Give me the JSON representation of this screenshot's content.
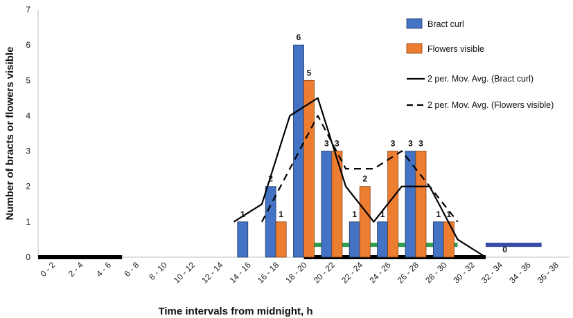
{
  "chart_data": {
    "type": "bar",
    "xlabel": "Time intervals from midnight, h",
    "ylabel": "Number of bracts or flowers visible",
    "ylim": [
      0,
      7
    ],
    "yticks": [
      "0",
      "1",
      "2",
      "3",
      "4",
      "5",
      "6",
      "7"
    ],
    "categories": [
      "0 - 2",
      "2 - 4",
      "4 - 6",
      "6 - 8",
      "8 - 10",
      "10 - 12",
      "12 - 14",
      "14 - 16",
      "16 - 18",
      "18 - 20",
      "20 - 22",
      "22 - 24",
      "24 - 26",
      "26 - 28",
      "28 - 30",
      "30 - 32",
      "32 - 34",
      "34 - 36",
      "36 - 38"
    ],
    "series": [
      {
        "name": "Bract curl",
        "color": "#4472c4",
        "values": [
          null,
          null,
          null,
          null,
          null,
          null,
          null,
          1,
          2,
          6,
          3,
          1,
          1,
          3,
          1,
          null,
          null,
          null,
          null
        ],
        "labels": [
          "",
          "",
          "",
          "",
          "",
          "",
          "",
          "1",
          "2",
          "6",
          "3",
          "1",
          "1",
          "3",
          "1",
          "",
          "",
          "",
          ""
        ]
      },
      {
        "name": "Flowers visible",
        "color": "#ed7d31",
        "values": [
          null,
          null,
          null,
          null,
          null,
          null,
          null,
          null,
          1,
          5,
          3,
          2,
          3,
          3,
          1,
          null,
          0,
          null,
          null
        ],
        "labels": [
          "",
          "",
          "",
          "",
          "",
          "",
          "",
          "",
          "1",
          "5",
          "3",
          "2",
          "3",
          "3",
          "1",
          "",
          "0",
          "",
          ""
        ]
      }
    ],
    "trendlines": [
      {
        "name": "2 per. Mov. Avg. (Bract curl)",
        "style": "solid",
        "color": "#000000",
        "points": [
          [
            7,
            1
          ],
          [
            8,
            1.5
          ],
          [
            9,
            4
          ],
          [
            10,
            4.5
          ],
          [
            11,
            2
          ],
          [
            12,
            1
          ],
          [
            13,
            2
          ],
          [
            14,
            2
          ],
          [
            15,
            0.5
          ],
          [
            16,
            0
          ]
        ]
      },
      {
        "name": "2 per. Mov. Avg. (Flowers visible)",
        "style": "dashed",
        "color": "#000000",
        "points": [
          [
            8,
            1
          ],
          [
            10,
            4
          ],
          [
            11,
            2.5
          ],
          [
            12,
            2.5
          ],
          [
            13,
            3
          ],
          [
            14,
            2
          ],
          [
            15,
            1
          ]
        ]
      }
    ],
    "bands": [
      {
        "color": "#000000",
        "y": 0,
        "from": -0.5,
        "to": 2.5
      },
      {
        "color": "#000000",
        "y": 0,
        "from": 9,
        "to": 15.5
      },
      {
        "color": "#2e9e4f",
        "y": 0.35,
        "from": 9,
        "to": 14.5
      },
      {
        "color": "#3649a6",
        "y": 0.35,
        "from": 15.5,
        "to": 17.5
      }
    ],
    "grid": false,
    "legend": "top-right"
  }
}
